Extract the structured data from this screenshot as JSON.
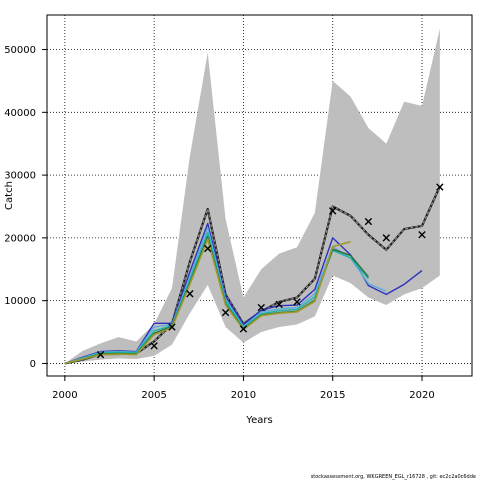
{
  "chart_data": {
    "type": "line",
    "xlabel": "Years",
    "ylabel": "Catch",
    "xlim": [
      1999,
      2022.8
    ],
    "ylim": [
      -2000,
      55500
    ],
    "xticks": [
      2000,
      2005,
      2010,
      2015,
      2020
    ],
    "yticks": [
      0,
      10000,
      20000,
      30000,
      40000,
      50000
    ],
    "grid": "dotted",
    "band": {
      "color": "#bebebe",
      "x": [
        2000,
        2001,
        2002,
        2003,
        2004,
        2005,
        2006,
        2007,
        2008,
        2009,
        2010,
        2011,
        2012,
        2013,
        2014,
        2015,
        2016,
        2017,
        2018,
        2019,
        2020,
        2021
      ],
      "upper": [
        0,
        2000,
        3200,
        4200,
        3500,
        6300,
        12000,
        33000,
        49500,
        23000,
        10500,
        15000,
        17500,
        18500,
        24000,
        45000,
        42500,
        37500,
        35000,
        41700,
        41000,
        53300
      ],
      "lower": [
        0,
        300,
        600,
        800,
        700,
        1200,
        3000,
        8000,
        12500,
        5800,
        3300,
        5000,
        5800,
        6200,
        7500,
        14000,
        12800,
        10500,
        9300,
        11000,
        12000,
        14000
      ]
    },
    "series": [
      {
        "color": "#1c1c1c",
        "width": 2.2,
        "dash": "",
        "x": [
          2000,
          2001,
          2002,
          2003,
          2004,
          2005,
          2006,
          2007,
          2008,
          2009,
          2010,
          2011,
          2012,
          2013,
          2014,
          2015,
          2016,
          2017,
          2018,
          2019,
          2020,
          2021
        ],
        "values": [
          0,
          600,
          1500,
          1500,
          1600,
          3500,
          6300,
          16200,
          24600,
          11000,
          6300,
          8300,
          9800,
          10500,
          13500,
          25000,
          23500,
          20500,
          18100,
          21400,
          21900,
          28200
        ]
      },
      {
        "color": "#8f8f8f",
        "width": 1.2,
        "dash": "3,2",
        "x": [
          2000,
          2001,
          2002,
          2003,
          2004,
          2005,
          2006,
          2007,
          2008,
          2009,
          2010,
          2011,
          2012,
          2013,
          2014,
          2015,
          2016,
          2017,
          2018,
          2019,
          2020,
          2021
        ],
        "values": [
          0,
          600,
          1500,
          1500,
          1600,
          3500,
          6300,
          16200,
          24600,
          11000,
          6300,
          8300,
          9800,
          10500,
          13500,
          25000,
          23500,
          20500,
          18100,
          21400,
          21900,
          28200
        ]
      },
      {
        "color": "#3030c0",
        "width": 1.4,
        "dash": "",
        "x": [
          2000,
          2001,
          2002,
          2003,
          2004,
          2005,
          2006,
          2007,
          2008,
          2009,
          2010,
          2011,
          2012,
          2013,
          2014,
          2015,
          2016,
          2017,
          2018,
          2019,
          2020
        ],
        "values": [
          0,
          1000,
          1900,
          2000,
          1900,
          6400,
          6400,
          14600,
          22300,
          10700,
          6200,
          8500,
          9200,
          9300,
          11800,
          20000,
          17300,
          12400,
          11000,
          12600,
          14800
        ]
      },
      {
        "color": "#5aaed8",
        "width": 1.4,
        "dash": "",
        "x": [
          2000,
          2001,
          2002,
          2003,
          2004,
          2005,
          2006,
          2007,
          2008,
          2009,
          2010,
          2011,
          2012,
          2013,
          2014,
          2015,
          2016,
          2017,
          2018
        ],
        "values": [
          0,
          900,
          1800,
          1900,
          1800,
          5800,
          6200,
          13800,
          21600,
          10200,
          5900,
          8200,
          8700,
          8900,
          11100,
          18600,
          16800,
          12700,
          11500
        ]
      },
      {
        "color": "#1ab5a5",
        "width": 1.4,
        "dash": "",
        "x": [
          2000,
          2001,
          2002,
          2003,
          2004,
          2005,
          2006,
          2007,
          2008,
          2009,
          2010,
          2011,
          2012,
          2013,
          2014,
          2015,
          2016,
          2017
        ],
        "values": [
          0,
          800,
          1700,
          1800,
          1700,
          5200,
          6000,
          13300,
          20800,
          9900,
          5700,
          7900,
          8400,
          8600,
          10600,
          18000,
          16800,
          13500
        ]
      },
      {
        "color": "#2e6e3c",
        "width": 1.4,
        "dash": "",
        "x": [
          2000,
          2001,
          2002,
          2003,
          2004,
          2005,
          2006,
          2007,
          2008,
          2009,
          2010,
          2011,
          2012,
          2013,
          2014,
          2015,
          2016,
          2017
        ],
        "values": [
          0,
          700,
          1500,
          1600,
          1500,
          4800,
          5900,
          12900,
          20200,
          9500,
          5500,
          7700,
          8100,
          8300,
          10100,
          18200,
          17200,
          13800
        ]
      },
      {
        "color": "#9e9a2c",
        "width": 1.6,
        "dash": "",
        "x": [
          2000,
          2001,
          2002,
          2003,
          2004,
          2005,
          2006,
          2007,
          2008,
          2009,
          2010,
          2011,
          2012,
          2013,
          2014,
          2015,
          2016
        ],
        "values": [
          0,
          700,
          1400,
          1500,
          1400,
          4600,
          5700,
          12600,
          19800,
          9300,
          5400,
          7600,
          8000,
          8200,
          9900,
          18600,
          19400
        ]
      }
    ],
    "points": {
      "marker": "x",
      "x": [
        2002,
        2005,
        2006,
        2007,
        2008,
        2009,
        2010,
        2011,
        2012,
        2013,
        2015,
        2017,
        2018,
        2020,
        2021
      ],
      "values": [
        1400,
        2800,
        5800,
        11100,
        18300,
        8100,
        5500,
        8900,
        9400,
        9800,
        24300,
        22600,
        20000,
        20500,
        28100
      ]
    }
  },
  "footer": "stockassessment.org, WKGREEN_EGL_r16728 , git: ec2c2a0c6dde"
}
